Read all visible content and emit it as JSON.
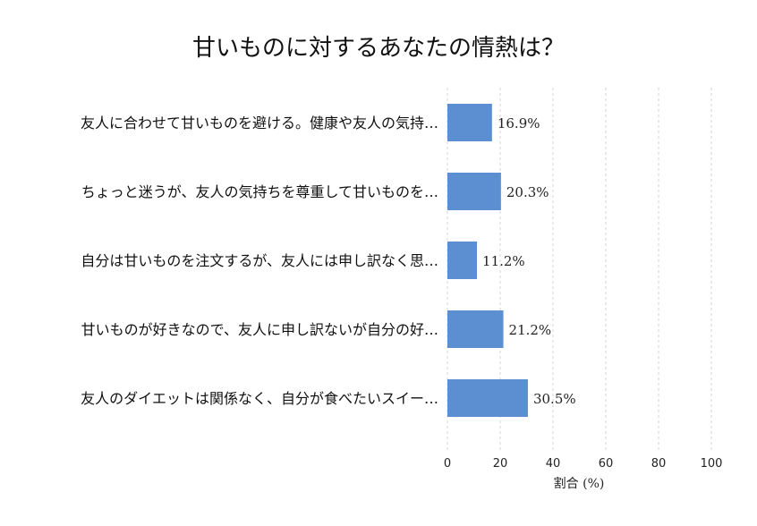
{
  "chart_data": {
    "type": "bar",
    "orientation": "horizontal",
    "title": "甘いものに対するあなたの情熱は？",
    "xlabel": "割合 (%)",
    "ylabel": "",
    "xlim": [
      0,
      100
    ],
    "xticks": [
      "0",
      "20",
      "40",
      "60",
      "80",
      "100"
    ],
    "grid": "vertical-dashed",
    "bar_color": "#5b8fd1",
    "categories": [
      "友人に合わせて甘いものを避ける。健康や友人の気持…",
      "ちょっと迷うが、友人の気持ちを尊重して甘いものを…",
      "自分は甘いものを注文するが、友人には申し訳なく思…",
      "甘いものが好きなので、友人に申し訳ないが自分の好…",
      "友人のダイエットは関係なく、自分が食べたいスイー…"
    ],
    "values": [
      16.9,
      20.3,
      11.2,
      21.2,
      30.5
    ],
    "value_labels": [
      "16.9%",
      "20.3%",
      "11.2%",
      "21.2%",
      "30.5%"
    ]
  }
}
